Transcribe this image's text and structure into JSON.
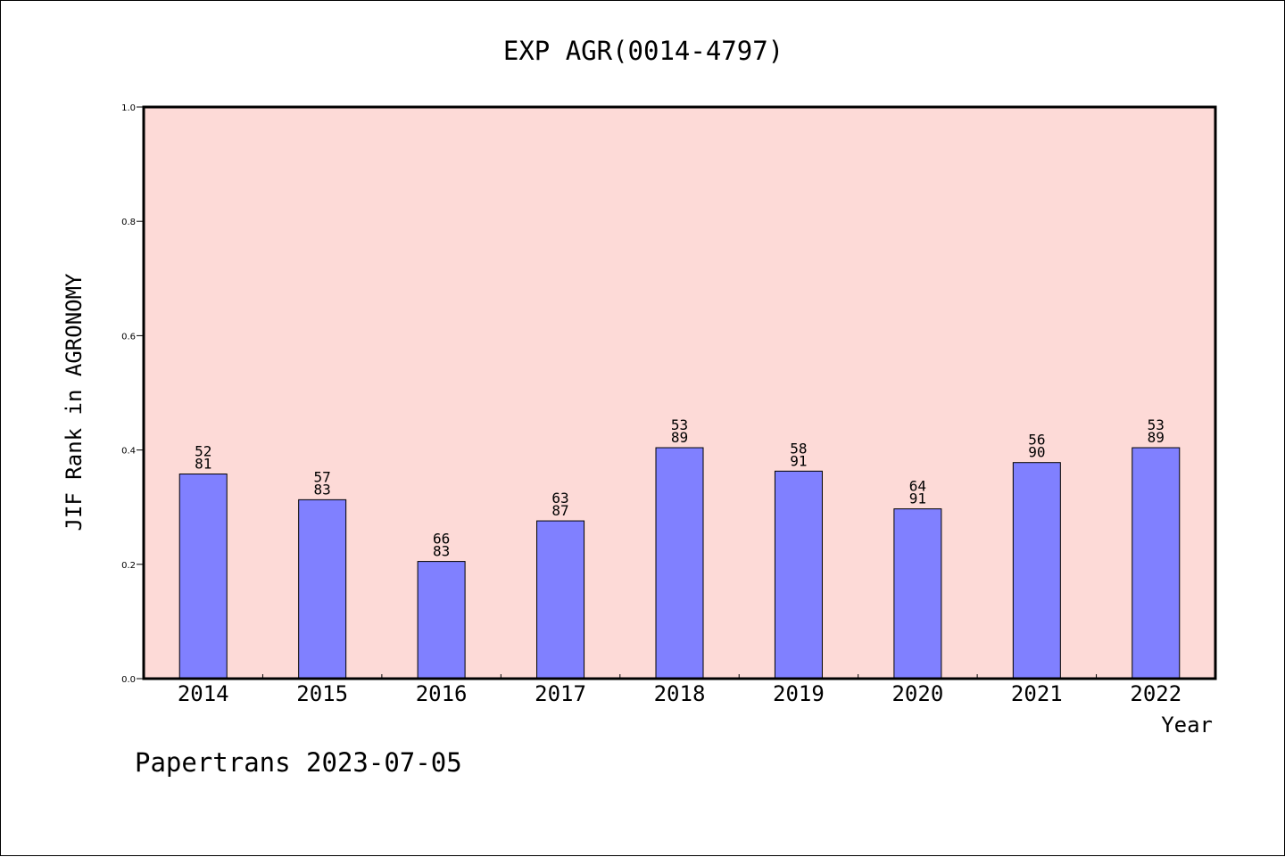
{
  "chart_data": {
    "type": "bar",
    "title": "EXP AGR(0014-4797)",
    "xlabel": "Year",
    "ylabel": "JIF Rank in AGRONOMY",
    "ylim": [
      0,
      1.0
    ],
    "yticks": [
      0.0,
      0.2,
      0.4,
      0.6,
      0.8,
      1.0
    ],
    "ytick_labels": [
      "0.0",
      "0.2",
      "0.4",
      "0.6",
      "0.8",
      "1.0"
    ],
    "categories": [
      "2014",
      "2015",
      "2016",
      "2017",
      "2018",
      "2019",
      "2020",
      "2021",
      "2022"
    ],
    "values": [
      0.358,
      0.313,
      0.205,
      0.276,
      0.404,
      0.363,
      0.297,
      0.378,
      0.404
    ],
    "label_top": [
      "52",
      "57",
      "66",
      "63",
      "53",
      "58",
      "64",
      "56",
      "53"
    ],
    "label_bottom": [
      "81",
      "83",
      "83",
      "87",
      "89",
      "91",
      "91",
      "90",
      "89"
    ],
    "grid": false,
    "colors": {
      "plot_background": "#fddad7",
      "bar_fill": "#8080ff",
      "bar_stroke": "#000000",
      "axis": "#000000",
      "text": "#000000"
    }
  },
  "footer": {
    "watermark": "Papertrans 2023-07-05"
  }
}
